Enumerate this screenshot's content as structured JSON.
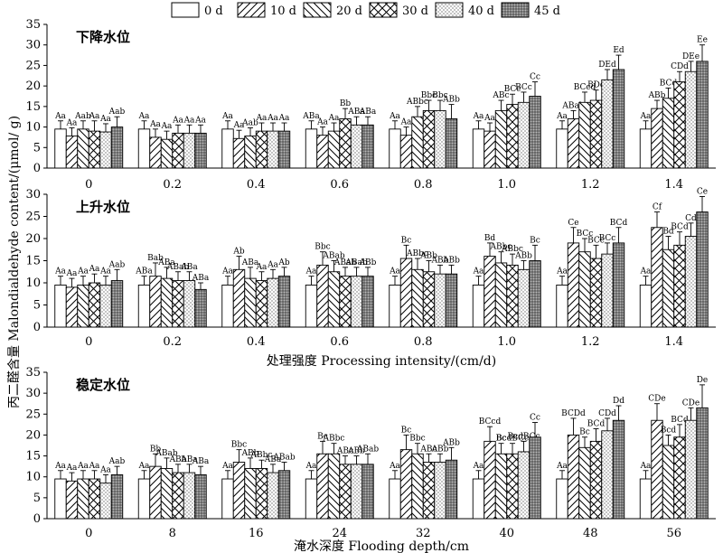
{
  "y_title": "丙二醛含量 Malondialdehyde content/(μmol/ g)",
  "legend": [
    "0 d",
    "10 d",
    "20 d",
    "30 d",
    "40 d",
    "45 d"
  ],
  "chart_data": [
    {
      "type": "bar",
      "title": "下降水位",
      "xlabel": "",
      "ylim": [
        0,
        35
      ],
      "yticks": [
        0,
        5,
        10,
        15,
        20,
        25,
        30,
        35
      ],
      "categories": [
        "0",
        "0.2",
        "0.4",
        "0.6",
        "0.8",
        "1.0",
        "1.2",
        "1.4"
      ],
      "series": [
        {
          "name": "0 d",
          "values": [
            9.5,
            9.5,
            9.5,
            9.5,
            9.5,
            9.5,
            9.5,
            9.5
          ],
          "errors": [
            2,
            2,
            2,
            2,
            2,
            2,
            2,
            2
          ],
          "labels": [
            "Aa",
            "Aa",
            "Aa",
            "ABa",
            "Aa",
            "Aa",
            "Aa",
            "Aa"
          ]
        },
        {
          "name": "10 d",
          "values": [
            7.8,
            7.5,
            7.2,
            8.0,
            8.0,
            9.0,
            12.0,
            14.5
          ],
          "errors": [
            2,
            2,
            2,
            2,
            2,
            2,
            2,
            2
          ],
          "labels": [
            "Aa",
            "Aa",
            "Aa",
            "Aa",
            "Aa",
            "Aa",
            "ABab",
            "ABb"
          ]
        },
        {
          "name": "20 d",
          "values": [
            9.5,
            7.0,
            7.8,
            9.0,
            12.5,
            14.0,
            16.0,
            17.0
          ],
          "errors": [
            2,
            2,
            2,
            2,
            2.5,
            2.5,
            2.5,
            2.5
          ],
          "labels": [
            "Aab",
            "Aa",
            "Aab",
            "Aa",
            "ABbc",
            "ABc",
            "BCcd",
            "BCd"
          ]
        },
        {
          "name": "30 d",
          "values": [
            9.0,
            8.5,
            9.0,
            12.0,
            14.0,
            15.5,
            16.5,
            21.0
          ],
          "errors": [
            2.5,
            2,
            2,
            2.5,
            2.5,
            2.5,
            2.5,
            2.5
          ],
          "labels": [
            "Aa",
            "Aa",
            "Aa",
            "Bb",
            "Bbc",
            "BCc",
            "BDc",
            "CDd"
          ]
        },
        {
          "name": "40 d",
          "values": [
            8.8,
            8.5,
            9.0,
            10.5,
            14.0,
            16.0,
            21.5,
            23.5
          ],
          "errors": [
            2,
            2,
            2,
            2,
            2.5,
            2.5,
            2.5,
            2.5
          ],
          "labels": [
            "Aa",
            "Aa",
            "Aa",
            "ABa",
            "Bbc",
            "BCc",
            "DEd",
            "DEe"
          ]
        },
        {
          "name": "45 d",
          "values": [
            10.0,
            8.5,
            9.0,
            10.5,
            12.0,
            17.5,
            24.0,
            26.0
          ],
          "errors": [
            2.5,
            2,
            2,
            2,
            3.5,
            3.5,
            3.5,
            4.0
          ],
          "labels": [
            "Aab",
            "Aa",
            "Aa",
            "ABa",
            "ABb",
            "Cc",
            "Ed",
            "Ee"
          ]
        }
      ]
    },
    {
      "type": "bar",
      "title": "上升水位",
      "xlabel": "处理强度 Processing intensity/(cm/d)",
      "ylim": [
        0,
        30
      ],
      "yticks": [
        0,
        5,
        10,
        15,
        20,
        25,
        30
      ],
      "categories": [
        "0",
        "0.2",
        "0.4",
        "0.6",
        "0.8",
        "1.0",
        "1.2",
        "1.4"
      ],
      "series": [
        {
          "name": "0 d",
          "values": [
            9.5,
            9.5,
            9.5,
            9.5,
            9.5,
            9.5,
            9.5,
            9.5
          ],
          "errors": [
            2,
            2,
            2,
            2,
            2,
            2,
            2,
            2
          ],
          "labels": [
            "Aa",
            "ABa",
            "Aa",
            "Aa",
            "Aa",
            "Aa",
            "Aa",
            "Aa"
          ]
        },
        {
          "name": "10 d",
          "values": [
            9.0,
            11.5,
            13.0,
            14.0,
            15.5,
            16.0,
            19.0,
            22.5
          ],
          "errors": [
            2,
            3,
            3,
            3,
            3,
            3,
            3.5,
            3.5
          ],
          "labels": [
            "Aa",
            "Bab",
            "Ab",
            "Bbc",
            "Bc",
            "Bd",
            "Ce",
            "Cf"
          ]
        },
        {
          "name": "20 d",
          "values": [
            9.5,
            11.0,
            11.0,
            12.5,
            13.0,
            14.5,
            17.0,
            17.5
          ],
          "errors": [
            2,
            2.5,
            2.5,
            2.5,
            2.5,
            2.5,
            3,
            3
          ],
          "labels": [
            "Aa",
            "ABa",
            "ABa",
            "ABab",
            "ABbc",
            "ABbc",
            "BCc",
            "Bd"
          ]
        },
        {
          "name": "30 d",
          "values": [
            10.0,
            10.5,
            10.5,
            11.5,
            12.5,
            14.0,
            15.5,
            18.5
          ],
          "errors": [
            2,
            2,
            2,
            2,
            2.5,
            2.5,
            3,
            3
          ],
          "labels": [
            "Aa",
            "ABab",
            "Aa",
            "ABab",
            "ABb",
            "ABbc",
            "BCc",
            "BCd"
          ]
        },
        {
          "name": "40 d",
          "values": [
            9.5,
            10.5,
            11.0,
            11.5,
            12.0,
            13.0,
            16.5,
            20.5
          ],
          "errors": [
            2,
            2,
            2,
            2,
            2,
            2,
            2.5,
            3
          ],
          "labels": [
            "Aa",
            "ABa",
            "Aa",
            "ABab",
            "ABb",
            "ABb",
            "BCc",
            "Cd"
          ]
        },
        {
          "name": "45 d",
          "values": [
            10.5,
            8.5,
            11.5,
            11.5,
            12.0,
            15.0,
            19.0,
            26.0
          ],
          "errors": [
            2.5,
            1.5,
            2,
            2,
            2,
            3.5,
            3.5,
            3.5
          ],
          "labels": [
            "Aab",
            "ABa",
            "Ab",
            "ABb",
            "ABb",
            "Bc",
            "BCd",
            "Ce"
          ]
        }
      ]
    },
    {
      "type": "bar",
      "title": "稳定水位",
      "xlabel": "淹水深度 Flooding depth/cm",
      "ylim": [
        0,
        35
      ],
      "yticks": [
        0,
        5,
        10,
        15,
        20,
        25,
        30,
        35
      ],
      "categories": [
        "0",
        "8",
        "16",
        "24",
        "32",
        "40",
        "48",
        "56"
      ],
      "series": [
        {
          "name": "0 d",
          "values": [
            9.5,
            9.5,
            9.5,
            9.5,
            9.5,
            9.5,
            9.5,
            9.5
          ],
          "errors": [
            2,
            2,
            2,
            2,
            2,
            2,
            2,
            2
          ],
          "labels": [
            "Aa",
            "Aa",
            "Aa",
            "Aa",
            "Aa",
            "Aa",
            "Aa",
            "Aa"
          ]
        },
        {
          "name": "10 d",
          "values": [
            9.0,
            12.5,
            13.5,
            15.5,
            16.5,
            18.5,
            20.0,
            23.5
          ],
          "errors": [
            2,
            3,
            3,
            3,
            3.5,
            3.5,
            4,
            4
          ],
          "labels": [
            "Aa",
            "Bb",
            "Bbc",
            "Bc",
            "Bc",
            "BCcd",
            "BCDd",
            "CDe"
          ]
        },
        {
          "name": "20 d",
          "values": [
            9.5,
            12.0,
            12.0,
            15.5,
            15.5,
            15.5,
            17.0,
            17.5
          ],
          "errors": [
            2,
            2.5,
            2.5,
            2.5,
            2.5,
            2.5,
            2.5,
            2.5
          ],
          "labels": [
            "Aa",
            "ABab",
            "ABb",
            "ABbc",
            "Bbc",
            "Bc",
            "Bc",
            "Bcd"
          ]
        },
        {
          "name": "30 d",
          "values": [
            9.5,
            11.0,
            12.0,
            13.0,
            13.5,
            15.5,
            18.5,
            19.5
          ],
          "errors": [
            2,
            2,
            2,
            2,
            2,
            2.5,
            3,
            3
          ],
          "labels": [
            "Aa",
            "ABb",
            "ABbc",
            "ABc",
            "ABc",
            "BcdBCc",
            "BCd",
            "BCd"
          ]
        },
        {
          "name": "40 d",
          "values": [
            8.5,
            11.0,
            11.0,
            13.0,
            13.5,
            16.0,
            21.0,
            23.5
          ],
          "errors": [
            2,
            2,
            2,
            2,
            2,
            2.5,
            3,
            3
          ],
          "labels": [
            "Aa",
            "ABa",
            "ABa",
            "ABb",
            "ABb",
            "BcdBCc",
            "CDd",
            "CDe"
          ]
        },
        {
          "name": "45 d",
          "values": [
            10.5,
            10.5,
            11.5,
            13.0,
            14.0,
            19.5,
            23.5,
            26.5
          ],
          "errors": [
            2,
            2,
            2,
            2.5,
            3,
            3.5,
            3.5,
            5.5
          ],
          "labels": [
            "Aab",
            "ABa",
            "ABab",
            "ABab",
            "ABb",
            "Cc",
            "Dd",
            "De"
          ]
        }
      ]
    }
  ]
}
